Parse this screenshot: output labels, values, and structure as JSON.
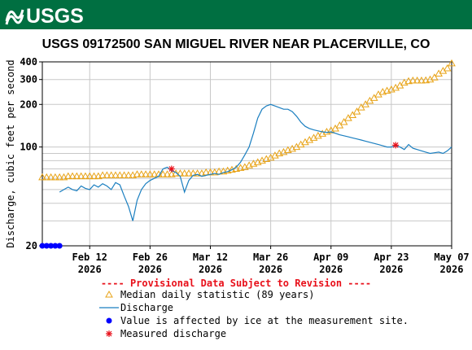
{
  "header": {
    "logo": "USGS"
  },
  "chart_data": {
    "type": "hydrograph",
    "title": "USGS 09172500 SAN MIGUEL RIVER NEAR PLACERVILLE, CO",
    "y_label": "Discharge, cubic feet per second",
    "annotation": "---- Provisional Data Subject to Revision ----",
    "log_y": true,
    "grid": true,
    "ylim": [
      20,
      400
    ],
    "yticks": [
      20,
      100,
      200,
      300,
      400
    ],
    "yminor": [
      30,
      40,
      50,
      60,
      70,
      80,
      90
    ],
    "xlim": [
      "2026-02-01",
      "2026-05-07"
    ],
    "xticks": [
      {
        "value": "2026-02-12",
        "label": [
          "Feb 12",
          "2026"
        ]
      },
      {
        "value": "2026-02-26",
        "label": [
          "Feb 26",
          "2026"
        ]
      },
      {
        "value": "2026-03-12",
        "label": [
          "Mar 12",
          "2026"
        ]
      },
      {
        "value": "2026-03-26",
        "label": [
          "Mar 26",
          "2026"
        ]
      },
      {
        "value": "2026-04-09",
        "label": [
          "Apr 09",
          "2026"
        ]
      },
      {
        "value": "2026-04-23",
        "label": [
          "Apr 23",
          "2026"
        ]
      },
      {
        "value": "2026-05-07",
        "label": [
          "May 07",
          "2026"
        ]
      }
    ],
    "x": [
      "2026-02-01",
      "2026-02-02",
      "2026-02-03",
      "2026-02-04",
      "2026-02-05",
      "2026-02-06",
      "2026-02-07",
      "2026-02-08",
      "2026-02-09",
      "2026-02-10",
      "2026-02-11",
      "2026-02-12",
      "2026-02-13",
      "2026-02-14",
      "2026-02-15",
      "2026-02-16",
      "2026-02-17",
      "2026-02-18",
      "2026-02-19",
      "2026-02-20",
      "2026-02-21",
      "2026-02-22",
      "2026-02-23",
      "2026-02-24",
      "2026-02-25",
      "2026-02-26",
      "2026-02-27",
      "2026-02-28",
      "2026-03-01",
      "2026-03-02",
      "2026-03-03",
      "2026-03-04",
      "2026-03-05",
      "2026-03-06",
      "2026-03-07",
      "2026-03-08",
      "2026-03-09",
      "2026-03-10",
      "2026-03-11",
      "2026-03-12",
      "2026-03-13",
      "2026-03-14",
      "2026-03-15",
      "2026-03-16",
      "2026-03-17",
      "2026-03-18",
      "2026-03-19",
      "2026-03-20",
      "2026-03-21",
      "2026-03-22",
      "2026-03-23",
      "2026-03-24",
      "2026-03-25",
      "2026-03-26",
      "2026-03-27",
      "2026-03-28",
      "2026-03-29",
      "2026-03-30",
      "2026-03-31",
      "2026-04-01",
      "2026-04-02",
      "2026-04-03",
      "2026-04-04",
      "2026-04-05",
      "2026-04-06",
      "2026-04-07",
      "2026-04-08",
      "2026-04-09",
      "2026-04-10",
      "2026-04-11",
      "2026-04-12",
      "2026-04-13",
      "2026-04-14",
      "2026-04-15",
      "2026-04-16",
      "2026-04-17",
      "2026-04-18",
      "2026-04-19",
      "2026-04-20",
      "2026-04-21",
      "2026-04-22",
      "2026-04-23",
      "2026-04-24",
      "2026-04-25",
      "2026-04-26",
      "2026-04-27",
      "2026-04-28",
      "2026-04-29",
      "2026-04-30",
      "2026-05-01",
      "2026-05-02",
      "2026-05-03",
      "2026-05-04",
      "2026-05-05",
      "2026-05-06",
      "2026-05-07"
    ],
    "series": [
      {
        "name": "Median daily statistic (89 years)",
        "marker": "triangle",
        "color": "#e8a317",
        "values": [
          61,
          61,
          61,
          61,
          61,
          61,
          62,
          62,
          62,
          62,
          62,
          62,
          62,
          62,
          63,
          63,
          63,
          63,
          63,
          63,
          63,
          63,
          64,
          64,
          64,
          64,
          64,
          64,
          64,
          64,
          64,
          65,
          65,
          65,
          65,
          65,
          65,
          65,
          66,
          66,
          66,
          67,
          67,
          68,
          69,
          70,
          71,
          72,
          74,
          76,
          78,
          80,
          82,
          84,
          87,
          90,
          92,
          95,
          97,
          100,
          104,
          108,
          112,
          116,
          120,
          124,
          128,
          131,
          135,
          142,
          150,
          160,
          168,
          178,
          190,
          200,
          212,
          222,
          235,
          245,
          250,
          255,
          262,
          272,
          285,
          292,
          295,
          295,
          295,
          296,
          300,
          310,
          330,
          345,
          360,
          390
        ]
      },
      {
        "name": "Discharge",
        "marker": "line",
        "color": "#1b7fc0",
        "values": [
          null,
          null,
          null,
          null,
          48,
          50,
          52,
          50,
          49,
          53,
          51,
          50,
          54,
          52,
          55,
          53,
          50,
          56,
          54,
          45,
          38,
          30,
          42,
          50,
          55,
          58,
          60,
          62,
          70,
          72,
          68,
          66,
          62,
          48,
          58,
          63,
          64,
          62,
          63,
          64,
          65,
          64,
          66,
          67,
          69,
          72,
          78,
          88,
          100,
          125,
          160,
          185,
          195,
          200,
          195,
          190,
          185,
          185,
          178,
          165,
          150,
          140,
          135,
          132,
          130,
          128,
          127,
          128,
          125,
          122,
          120,
          118,
          116,
          114,
          112,
          110,
          108,
          106,
          104,
          102,
          100,
          100,
          102,
          100,
          96,
          104,
          98,
          96,
          94,
          92,
          90,
          91,
          92,
          90,
          94,
          100
        ]
      },
      {
        "name": "Value is affected by ice at the measurement site.",
        "marker": "dot",
        "color": "#0000ff",
        "x": [
          "2026-02-01",
          "2026-02-02",
          "2026-02-03",
          "2026-02-04",
          "2026-02-05"
        ],
        "values": [
          20,
          20,
          20,
          20,
          20
        ]
      },
      {
        "name": "Measured discharge",
        "marker": "asterisk",
        "color": "#e8101a",
        "x": [
          "2026-03-03",
          "2026-04-24"
        ],
        "values": [
          70,
          103
        ]
      }
    ]
  }
}
